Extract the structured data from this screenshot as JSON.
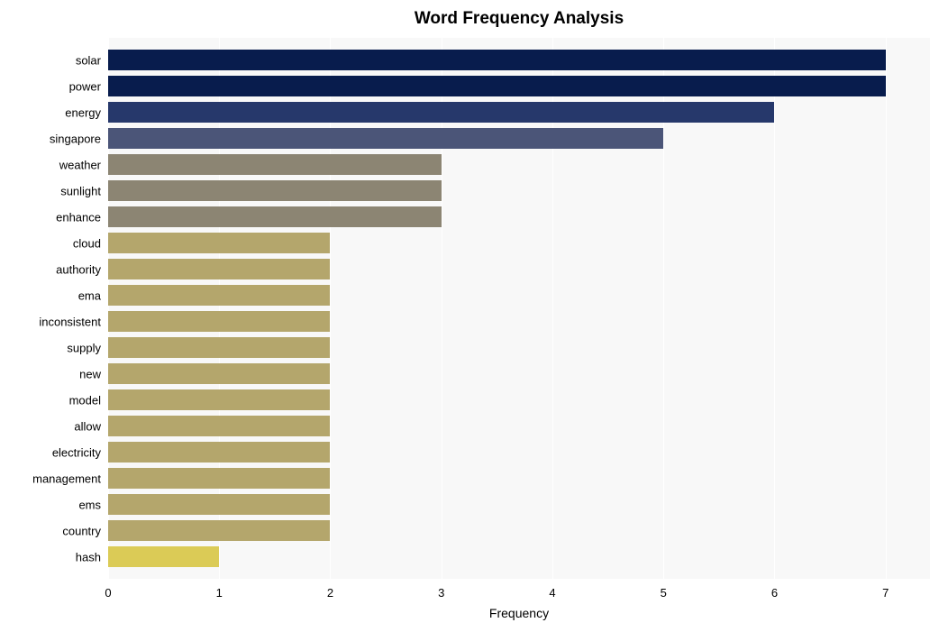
{
  "chart": {
    "type": "bar",
    "orientation": "horizontal",
    "title": "Word Frequency Analysis",
    "title_fontsize": 19,
    "title_fontweight": "bold",
    "xlabel": "Frequency",
    "xlabel_fontsize": 14,
    "background_color": "#ffffff",
    "plot_background_color": "#f8f8f8",
    "grid_color": "#ffffff",
    "xlim": [
      0,
      7.4
    ],
    "xticks": [
      0,
      1,
      2,
      3,
      4,
      5,
      6,
      7
    ],
    "xtick_fontsize": 13,
    "ytick_fontsize": 13,
    "bar_height_ratio": 0.78,
    "categories": [
      "solar",
      "power",
      "energy",
      "singapore",
      "weather",
      "sunlight",
      "enhance",
      "cloud",
      "authority",
      "ema",
      "inconsistent",
      "supply",
      "new",
      "model",
      "allow",
      "electricity",
      "management",
      "ems",
      "country",
      "hash"
    ],
    "values": [
      7,
      7,
      6,
      5,
      3,
      3,
      3,
      2,
      2,
      2,
      2,
      2,
      2,
      2,
      2,
      2,
      2,
      2,
      2,
      1
    ],
    "bar_colors": [
      "#081c4d",
      "#081c4d",
      "#26386b",
      "#4b5578",
      "#8c8573",
      "#8c8573",
      "#8c8573",
      "#b4a66c",
      "#b4a66c",
      "#b4a66c",
      "#b4a66c",
      "#b4a66c",
      "#b4a66c",
      "#b4a66c",
      "#b4a66c",
      "#b4a66c",
      "#b4a66c",
      "#b4a66c",
      "#b4a66c",
      "#dbcb56"
    ]
  }
}
